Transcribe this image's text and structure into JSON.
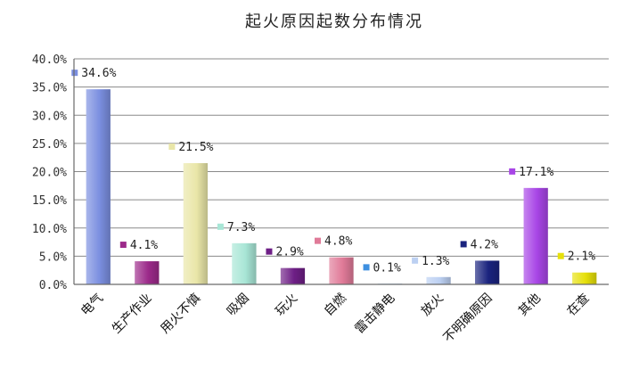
{
  "chart_data": {
    "type": "bar",
    "title": "起火原因起数分布情况",
    "xlabel": "",
    "ylabel": "",
    "ylim": [
      0,
      40
    ],
    "yticks": [
      "0.0%",
      "5.0%",
      "10.0%",
      "15.0%",
      "20.0%",
      "25.0%",
      "30.0%",
      "35.0%",
      "40.0%"
    ],
    "grid": true,
    "categories": [
      "电气",
      "生产作业",
      "用火不慎",
      "吸烟",
      "玩火",
      "自燃",
      "雷击静电",
      "放火",
      "不明确原因",
      "其他",
      "在查"
    ],
    "values": [
      34.6,
      4.1,
      21.5,
      7.3,
      2.9,
      4.8,
      0.1,
      1.3,
      4.2,
      17.1,
      2.1
    ],
    "data_labels": [
      "34.6%",
      "4.1%",
      "21.5%",
      "7.3%",
      "2.9%",
      "4.8%",
      "0.1%",
      "1.3%",
      "4.2%",
      "17.1%",
      "2.1%"
    ],
    "colors": [
      "#7b8fe0",
      "#9c2a8a",
      "#e9e6a8",
      "#a8e6d6",
      "#6e1f86",
      "#e07a98",
      "#3d8fe0",
      "#bcd0f2",
      "#1a237e",
      "#a845e6",
      "#e6e00a"
    ]
  }
}
